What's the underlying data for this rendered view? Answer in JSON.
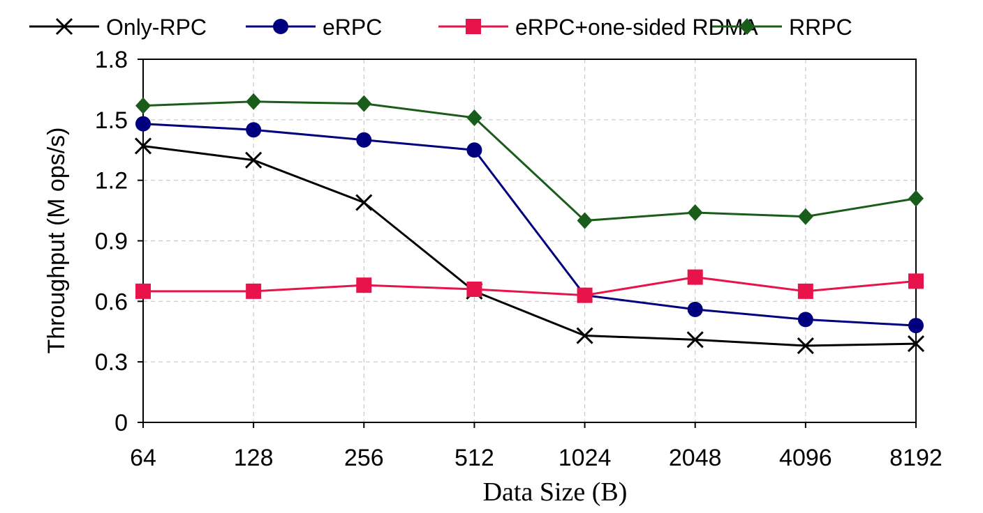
{
  "chart_data": {
    "type": "line",
    "title": "",
    "xlabel": "Data Size (B)",
    "ylabel": "Throughput (M ops/s)",
    "categories": [
      "64",
      "128",
      "256",
      "512",
      "1024",
      "2048",
      "4096",
      "8192"
    ],
    "ylim": [
      0,
      1.8
    ],
    "yticks": [
      "0",
      "0.3",
      "0.6",
      "0.9",
      "1.2",
      "1.5",
      "1.8"
    ],
    "grid": true,
    "legend_placement": "top",
    "series": [
      {
        "name": "Only-RPC",
        "color": "#000000",
        "marker": "x",
        "values": [
          1.37,
          1.3,
          1.09,
          0.65,
          0.43,
          0.41,
          0.38,
          0.39
        ]
      },
      {
        "name": "eRPC",
        "color": "#00007f",
        "marker": "circle",
        "values": [
          1.48,
          1.45,
          1.4,
          1.35,
          0.63,
          0.56,
          0.51,
          0.48
        ]
      },
      {
        "name": "eRPC+one-sided RDMA",
        "color": "#e8134a",
        "marker": "square",
        "values": [
          0.65,
          0.65,
          0.68,
          0.66,
          0.63,
          0.72,
          0.65,
          0.7
        ]
      },
      {
        "name": "RRPC",
        "color": "#1a5c1a",
        "marker": "diamond",
        "values": [
          1.57,
          1.59,
          1.58,
          1.51,
          1.0,
          1.04,
          1.02,
          1.11
        ]
      }
    ]
  }
}
